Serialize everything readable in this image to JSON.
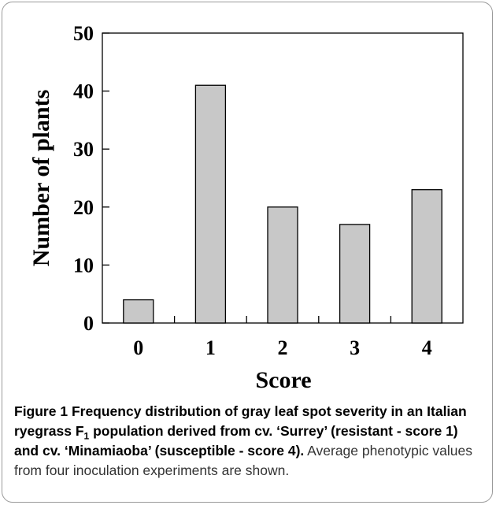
{
  "chart_data": {
    "type": "bar",
    "categories": [
      "0",
      "1",
      "2",
      "3",
      "4"
    ],
    "values": [
      4,
      41,
      20,
      17,
      23
    ],
    "xlabel": "Score",
    "ylabel": "Number of plants",
    "ylim": [
      0,
      50
    ],
    "yticks": [
      "0",
      "10",
      "20",
      "30",
      "40",
      "50"
    ],
    "bar_color": "#c8c8c8",
    "grid": false
  },
  "caption": {
    "figure_label": "Figure 1",
    "title_part1": " Frequency distribution of gray leaf spot severity in an Italian ryegrass F",
    "title_sub": "1",
    "title_part2": " population derived from cv. ‘Surrey’ (resistant - score 1) and cv. ‘Minamiaoba’ (susceptible - score 4).",
    "body": " Average phenotypic values from four inoculation experiments are shown."
  }
}
